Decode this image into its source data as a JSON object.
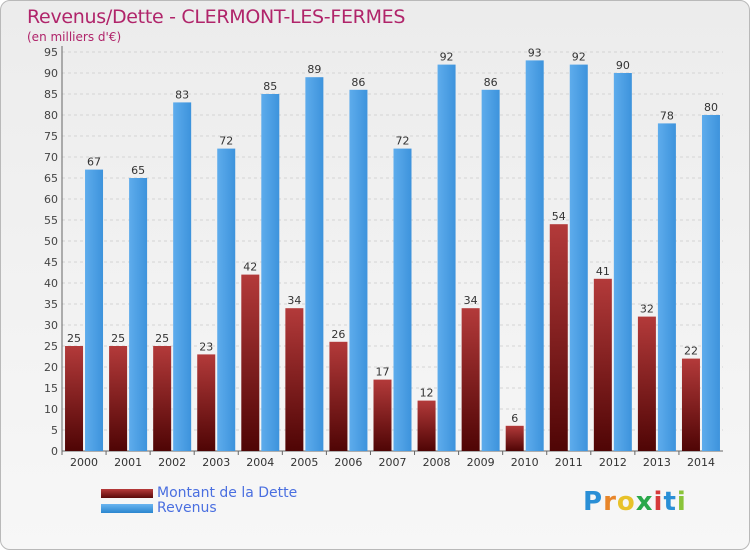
{
  "header": {
    "title": "Revenus/Dette - CLERMONT-LES-FERMES",
    "subtitle": "(en milliers d'€)"
  },
  "chart_data": {
    "type": "bar",
    "title": "Revenus/Dette - CLERMONT-LES-FERMES",
    "ylabel": "(en milliers d'€)",
    "xlabel": "",
    "ylim": [
      0,
      95
    ],
    "ytick_step": 5,
    "grid": true,
    "categories": [
      "2000",
      "2001",
      "2002",
      "2003",
      "2004",
      "2005",
      "2006",
      "2007",
      "2008",
      "2009",
      "2010",
      "2011",
      "2012",
      "2013",
      "2014"
    ],
    "series": [
      {
        "name": "Montant de la Dette",
        "color": "#8b1c1c",
        "values": [
          25,
          25,
          25,
          23,
          42,
          34,
          26,
          17,
          12,
          34,
          6,
          54,
          41,
          32,
          22
        ]
      },
      {
        "name": "Revenus",
        "color": "#4da3e8",
        "values": [
          67,
          65,
          83,
          72,
          85,
          89,
          86,
          72,
          92,
          86,
          93,
          92,
          90,
          78,
          80
        ]
      }
    ]
  },
  "legend": {
    "dette": "Montant de la Dette",
    "revenus": "Revenus"
  },
  "logo": {
    "letters": [
      "P",
      "r",
      "o",
      "x",
      "i",
      "t",
      "i"
    ],
    "colors": [
      "#2a8fd6",
      "#e8862a",
      "#e8c22a",
      "#2aa84a",
      "#d63a3a",
      "#2a8fd6",
      "#8ac43a"
    ]
  }
}
